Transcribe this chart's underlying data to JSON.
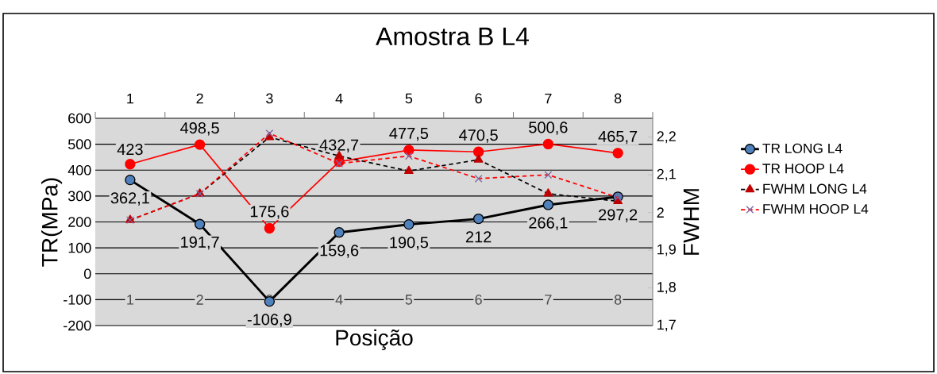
{
  "chart_data": {
    "type": "line",
    "title": "Amostra B L4",
    "xlabel": "Posição",
    "ylabel": "TR(MPa)",
    "y2label": "FWHM",
    "categories": [
      "1",
      "2",
      "3",
      "4",
      "5",
      "6",
      "7",
      "8"
    ],
    "ylim": [
      -200,
      600
    ],
    "yticks": [
      -200,
      -100,
      0,
      100,
      200,
      300,
      400,
      500,
      600
    ],
    "y2lim": [
      1.7,
      2.25
    ],
    "y2ticks": [
      {
        "value": 1.7,
        "label": "1,7"
      },
      {
        "value": 1.8,
        "label": "1,8"
      },
      {
        "value": 1.9,
        "label": "1,9"
      },
      {
        "value": 2.0,
        "label": "2"
      },
      {
        "value": 2.1,
        "label": "2,1"
      },
      {
        "value": 2.2,
        "label": "2,2"
      }
    ],
    "grid": "y",
    "legend": "right",
    "series": [
      {
        "name": "TR LONG L4",
        "color": "#000000",
        "marker": "circle",
        "line_style": "solid",
        "values": [
          362.1,
          191.7,
          -106.9,
          159.6,
          190.5,
          212,
          266.1,
          297.2
        ],
        "value_labels": [
          "362,1",
          "191,7",
          "-106,9",
          "159,6",
          "190,5",
          "212",
          "266,1",
          "297,2"
        ]
      },
      {
        "name": "TR HOOP L4",
        "color": "#ff0000",
        "marker": "circle",
        "line_style": "solid",
        "values": [
          423,
          498.5,
          175.6,
          432.7,
          477.5,
          470.5,
          500.6,
          465.7
        ],
        "value_labels": [
          "423",
          "498,5",
          "175,6",
          "432,7",
          "477,5",
          "470,5",
          "500,6",
          "465,7"
        ]
      },
      {
        "name": "FWHM LONG L4",
        "color": "#000000",
        "marker": "triangle",
        "line_style": "dashed",
        "axis": "y2",
        "values": [
          1.98,
          2.05,
          2.2,
          2.15,
          2.11,
          2.14,
          2.05,
          2.03
        ]
      },
      {
        "name": "FWHM HOOP L4",
        "color": "#ff0000",
        "marker": "cross",
        "line_style": "dashed",
        "axis": "y2",
        "values": [
          1.98,
          2.05,
          2.21,
          2.13,
          2.15,
          2.09,
          2.1,
          2.04
        ]
      }
    ]
  }
}
